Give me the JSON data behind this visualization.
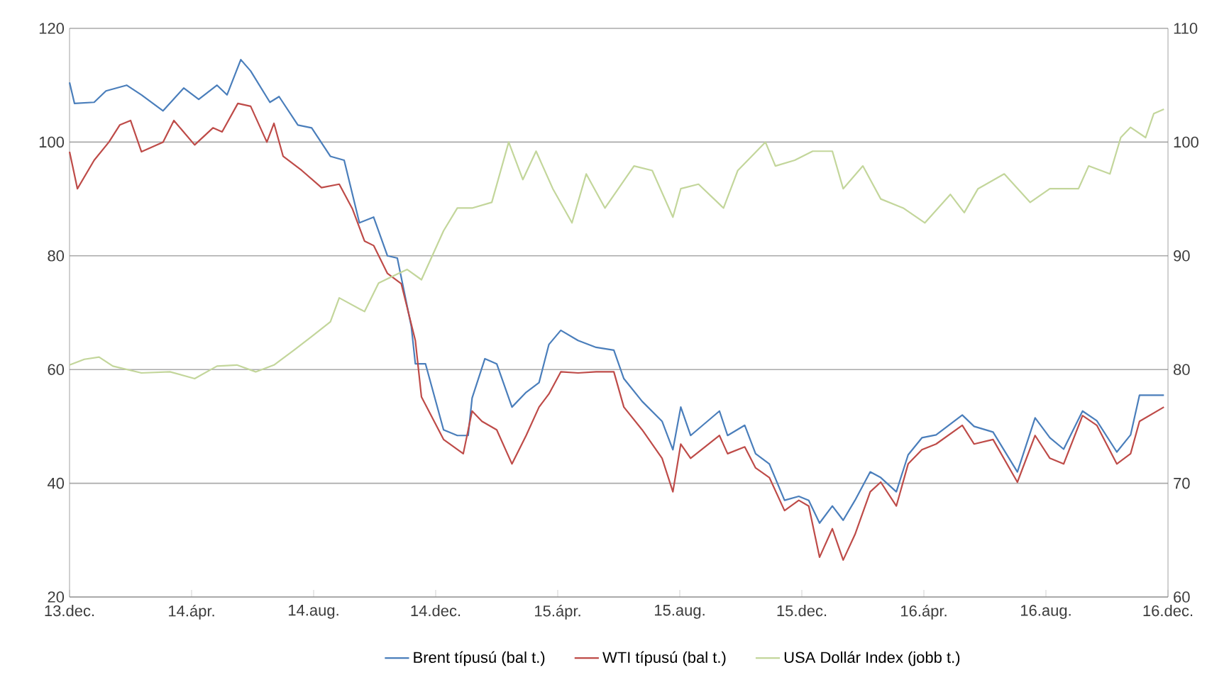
{
  "chart_data": {
    "type": "line",
    "xlim": [
      "2013-12-01",
      "2016-12-01"
    ],
    "xticks": [
      {
        "value": "2013-12-01",
        "label": "13.dec."
      },
      {
        "value": "2014-04-01",
        "label": "14.ápr."
      },
      {
        "value": "2014-08-01",
        "label": "14.aug."
      },
      {
        "value": "2014-12-01",
        "label": "14.dec."
      },
      {
        "value": "2015-04-01",
        "label": "15.ápr."
      },
      {
        "value": "2015-08-01",
        "label": "15.aug."
      },
      {
        "value": "2015-12-01",
        "label": "15.dec."
      },
      {
        "value": "2016-04-01",
        "label": "16.ápr."
      },
      {
        "value": "2016-08-01",
        "label": "16.aug."
      },
      {
        "value": "2016-12-01",
        "label": "16.dec."
      }
    ],
    "ylim": [
      20,
      120
    ],
    "yticks": [
      20,
      40,
      60,
      80,
      100,
      120
    ],
    "y2lim": [
      60,
      110
    ],
    "y2ticks": [
      60,
      70,
      80,
      90,
      100,
      110
    ],
    "grid": "y",
    "legend": "bottom",
    "line_style": "solid",
    "series": [
      {
        "name": "Brent típusú (bal t.)",
        "color": "#4a7ebb",
        "x": [
          "2013-12-01",
          "2013-12-06",
          "2013-12-26",
          "2014-01-07",
          "2014-01-28",
          "2014-02-11",
          "2014-03-03",
          "2014-03-24",
          "2014-04-08",
          "2014-04-26",
          "2014-05-06",
          "2014-05-20",
          "2014-05-30",
          "2014-06-18",
          "2014-06-27",
          "2014-07-16",
          "2014-07-30",
          "2014-08-18",
          "2014-09-01",
          "2014-09-16",
          "2014-09-30",
          "2014-10-14",
          "2014-10-24",
          "2014-11-07",
          "2014-11-11",
          "2014-11-21",
          "2014-12-09",
          "2014-12-23",
          "2015-01-03",
          "2015-01-07",
          "2015-01-20",
          "2015-02-01",
          "2015-02-15",
          "2015-02-28",
          "2015-03-13",
          "2015-03-23",
          "2015-04-04",
          "2015-04-21",
          "2015-05-09",
          "2015-05-27",
          "2015-06-06",
          "2015-06-24",
          "2015-07-14",
          "2015-07-25",
          "2015-08-02",
          "2015-08-12",
          "2015-09-10",
          "2015-09-18",
          "2015-10-05",
          "2015-10-16",
          "2015-10-30",
          "2015-11-14",
          "2015-11-28",
          "2015-12-08",
          "2015-12-19",
          "2016-01-01",
          "2016-01-12",
          "2016-01-24",
          "2016-02-08",
          "2016-02-18",
          "2016-03-04",
          "2016-03-16",
          "2016-03-30",
          "2016-04-13",
          "2016-05-09",
          "2016-05-21",
          "2016-06-09",
          "2016-07-03",
          "2016-07-21",
          "2016-08-05",
          "2016-08-19",
          "2016-09-07",
          "2016-09-21",
          "2016-10-11",
          "2016-10-25",
          "2016-11-03",
          "2016-11-27"
        ],
        "values": [
          110.5,
          106.8,
          107,
          109,
          110,
          108.3,
          105.5,
          109.5,
          107.5,
          110,
          108.3,
          114.5,
          112.5,
          107,
          108,
          103,
          102.5,
          97.5,
          96.8,
          85.8,
          86.8,
          80,
          79.6,
          67.6,
          61,
          61,
          49.4,
          48.4,
          48.4,
          55,
          61.9,
          61,
          53.4,
          56,
          57.7,
          64.4,
          66.9,
          65.1,
          63.9,
          63.4,
          58.4,
          54.4,
          50.9,
          45.9,
          53.4,
          48.4,
          52.7,
          48.4,
          50.2,
          45.2,
          43.4,
          37,
          37.7,
          37,
          33,
          36,
          33.5,
          37,
          42,
          41,
          38.5,
          45,
          48,
          48.5,
          52,
          50,
          49,
          42,
          51.5,
          48,
          46,
          52.7,
          51,
          45.5,
          48.5,
          55.5,
          55.5
        ]
      },
      {
        "name": "WTI típusú (bal t.)",
        "color": "#be4b48",
        "x": [
          "2013-12-01",
          "2013-12-09",
          "2013-12-26",
          "2014-01-10",
          "2014-01-21",
          "2014-02-01",
          "2014-02-11",
          "2014-03-03",
          "2014-03-14",
          "2014-04-04",
          "2014-04-22",
          "2014-05-01",
          "2014-05-17",
          "2014-05-30",
          "2014-06-15",
          "2014-06-22",
          "2014-07-01",
          "2014-07-20",
          "2014-08-09",
          "2014-08-27",
          "2014-09-09",
          "2014-09-21",
          "2014-09-30",
          "2014-10-14",
          "2014-10-28",
          "2014-11-11",
          "2014-11-17",
          "2014-12-09",
          "2014-12-29",
          "2015-01-07",
          "2015-01-17",
          "2015-02-01",
          "2015-02-15",
          "2015-02-28",
          "2015-03-13",
          "2015-03-23",
          "2015-04-04",
          "2015-04-21",
          "2015-05-09",
          "2015-05-27",
          "2015-06-06",
          "2015-06-24",
          "2015-07-14",
          "2015-07-25",
          "2015-08-02",
          "2015-08-12",
          "2015-09-10",
          "2015-09-18",
          "2015-10-05",
          "2015-10-16",
          "2015-10-30",
          "2015-11-14",
          "2015-11-28",
          "2015-12-08",
          "2015-12-19",
          "2016-01-01",
          "2016-01-12",
          "2016-01-24",
          "2016-02-08",
          "2016-02-18",
          "2016-03-04",
          "2016-03-16",
          "2016-03-30",
          "2016-04-13",
          "2016-05-09",
          "2016-05-21",
          "2016-06-09",
          "2016-07-03",
          "2016-07-21",
          "2016-08-05",
          "2016-08-19",
          "2016-09-07",
          "2016-09-21",
          "2016-10-11",
          "2016-10-25",
          "2016-11-03",
          "2016-11-27"
        ],
        "values": [
          98.3,
          91.8,
          96.8,
          100,
          103,
          103.8,
          98.3,
          100,
          103.8,
          99.5,
          102.5,
          101.8,
          106.8,
          106.3,
          100,
          103.3,
          97.5,
          95,
          92,
          92.6,
          88.3,
          82.6,
          81.8,
          76.9,
          75.1,
          65.1,
          55.2,
          47.7,
          45.2,
          52.7,
          50.9,
          49.4,
          43.4,
          48.4,
          53.4,
          55.7,
          59.6,
          59.4,
          59.6,
          59.6,
          53.4,
          49.4,
          44.4,
          38.5,
          46.9,
          44.4,
          48.4,
          45.2,
          46.4,
          42.7,
          41,
          35.2,
          37,
          36,
          27,
          32,
          26.5,
          31,
          38.5,
          40.2,
          36,
          43.4,
          45.9,
          46.9,
          50.2,
          46.9,
          47.7,
          40.2,
          48.4,
          44.4,
          43.4,
          51.9,
          50.2,
          43.4,
          45.2,
          50.9,
          53.4
        ]
      },
      {
        "name": "USA Dollár Index (jobb t.)",
        "color": "#c3d69b",
        "axis": "y2",
        "x": [
          "2013-12-01",
          "2013-12-16",
          "2013-12-31",
          "2014-01-14",
          "2014-02-11",
          "2014-03-10",
          "2014-04-04",
          "2014-04-26",
          "2014-05-16",
          "2014-06-04",
          "2014-06-22",
          "2014-07-12",
          "2014-07-30",
          "2014-08-18",
          "2014-08-27",
          "2014-09-21",
          "2014-10-05",
          "2014-10-24",
          "2014-11-03",
          "2014-11-17",
          "2014-12-09",
          "2014-12-23",
          "2015-01-07",
          "2015-01-27",
          "2015-02-12",
          "2015-02-25",
          "2015-03-10",
          "2015-03-27",
          "2015-04-15",
          "2015-04-29",
          "2015-05-18",
          "2015-06-16",
          "2015-07-04",
          "2015-07-25",
          "2015-08-02",
          "2015-08-20",
          "2015-09-14",
          "2015-09-28",
          "2015-10-26",
          "2015-11-05",
          "2015-11-24",
          "2015-12-12",
          "2016-01-01",
          "2016-01-12",
          "2016-02-01",
          "2016-02-18",
          "2016-03-11",
          "2016-04-02",
          "2016-04-27",
          "2016-05-11",
          "2016-05-25",
          "2016-06-20",
          "2016-07-16",
          "2016-08-05",
          "2016-09-03",
          "2016-09-13",
          "2016-10-04",
          "2016-10-15",
          "2016-10-25",
          "2016-11-09",
          "2016-11-17",
          "2016-11-27"
        ],
        "values": [
          80.4,
          80.9,
          81.1,
          80.3,
          79.7,
          79.8,
          79.2,
          80.3,
          80.4,
          79.8,
          80.4,
          81.7,
          82.9,
          84.2,
          86.3,
          85.1,
          87.6,
          88.4,
          88.8,
          87.9,
          92.2,
          94.2,
          94.2,
          94.7,
          100,
          96.7,
          99.2,
          95.9,
          92.9,
          97.2,
          94.2,
          97.9,
          97.5,
          93.4,
          95.9,
          96.3,
          94.2,
          97.5,
          100,
          97.9,
          98.4,
          99.2,
          99.2,
          95.9,
          97.9,
          95,
          94.2,
          92.9,
          95.4,
          93.8,
          95.9,
          97.2,
          94.7,
          95.9,
          95.9,
          97.9,
          97.2,
          100.4,
          101.3,
          100.4,
          102.5,
          102.9
        ]
      }
    ]
  }
}
